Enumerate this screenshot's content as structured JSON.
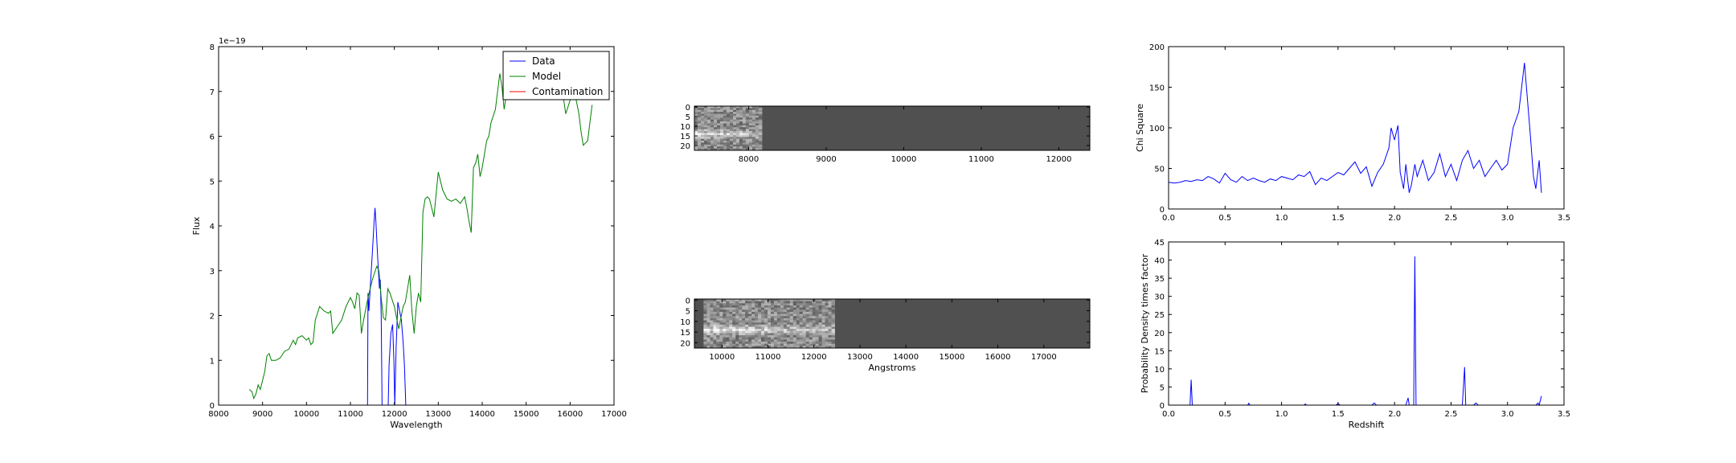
{
  "chart_data": [
    {
      "type": "line",
      "xlabel": "Wavelength",
      "ylabel": "Flux",
      "offset_label": "1e−19",
      "xlim": [
        8000,
        17000
      ],
      "ylim": [
        0,
        8
      ],
      "xticks": [
        8000,
        9000,
        10000,
        11000,
        12000,
        13000,
        14000,
        15000,
        16000,
        17000
      ],
      "yticks": [
        0,
        1,
        2,
        3,
        4,
        5,
        6,
        7,
        8
      ],
      "legend_position": "top-right",
      "series": [
        {
          "name": "Data",
          "color": "#0000ff",
          "points": [
            [
              11390,
              0
            ],
            [
              11400,
              2.5
            ],
            [
              11420,
              2.1
            ],
            [
              11450,
              2.6
            ],
            [
              11500,
              3.4
            ],
            [
              11540,
              4.1
            ],
            [
              11560,
              4.4
            ],
            [
              11580,
              4.1
            ],
            [
              11620,
              3.3
            ],
            [
              11660,
              2.6
            ],
            [
              11680,
              2.8
            ],
            [
              11700,
              2.0
            ],
            [
              11720,
              0
            ],
            [
              11760,
              0
            ],
            [
              11800,
              0
            ],
            [
              11860,
              0
            ],
            [
              11880,
              0.9
            ],
            [
              11920,
              1.6
            ],
            [
              11960,
              1.8
            ],
            [
              11990,
              1.0
            ],
            [
              12010,
              0
            ],
            [
              12040,
              1.3
            ],
            [
              12080,
              2.3
            ],
            [
              12120,
              2.1
            ],
            [
              12160,
              1.9
            ],
            [
              12200,
              1.4
            ],
            [
              12230,
              0.9
            ],
            [
              12260,
              0
            ]
          ]
        },
        {
          "name": "Model",
          "color": "#008000",
          "points": [
            [
              8700,
              0.35
            ],
            [
              8760,
              0.3
            ],
            [
              8800,
              0.15
            ],
            [
              8850,
              0.25
            ],
            [
              8900,
              0.45
            ],
            [
              8950,
              0.35
            ],
            [
              9000,
              0.55
            ],
            [
              9050,
              0.75
            ],
            [
              9100,
              1.1
            ],
            [
              9150,
              1.15
            ],
            [
              9200,
              1.0
            ],
            [
              9300,
              1.0
            ],
            [
              9400,
              1.05
            ],
            [
              9500,
              1.2
            ],
            [
              9600,
              1.25
            ],
            [
              9700,
              1.45
            ],
            [
              9750,
              1.35
            ],
            [
              9800,
              1.5
            ],
            [
              9900,
              1.55
            ],
            [
              10000,
              1.45
            ],
            [
              10050,
              1.5
            ],
            [
              10100,
              1.35
            ],
            [
              10150,
              1.4
            ],
            [
              10200,
              1.9
            ],
            [
              10300,
              2.2
            ],
            [
              10400,
              2.1
            ],
            [
              10500,
              2.05
            ],
            [
              10550,
              2.1
            ],
            [
              10600,
              1.6
            ],
            [
              10700,
              1.75
            ],
            [
              10800,
              1.9
            ],
            [
              10900,
              2.2
            ],
            [
              11000,
              2.4
            ],
            [
              11050,
              2.3
            ],
            [
              11100,
              2.15
            ],
            [
              11150,
              2.5
            ],
            [
              11200,
              2.45
            ],
            [
              11250,
              1.6
            ],
            [
              11300,
              1.9
            ],
            [
              11400,
              2.4
            ],
            [
              11500,
              2.8
            ],
            [
              11600,
              3.1
            ],
            [
              11650,
              3.0
            ],
            [
              11700,
              2.4
            ],
            [
              11750,
              1.95
            ],
            [
              11800,
              1.9
            ],
            [
              11850,
              2.6
            ],
            [
              11900,
              2.5
            ],
            [
              12000,
              2.2
            ],
            [
              12100,
              1.7
            ],
            [
              12200,
              2.2
            ],
            [
              12250,
              2.3
            ],
            [
              12300,
              2.6
            ],
            [
              12350,
              2.9
            ],
            [
              12400,
              2.1
            ],
            [
              12450,
              1.6
            ],
            [
              12500,
              2.2
            ],
            [
              12550,
              2.5
            ],
            [
              12600,
              2.3
            ],
            [
              12650,
              4.3
            ],
            [
              12700,
              4.6
            ],
            [
              12750,
              4.65
            ],
            [
              12800,
              4.6
            ],
            [
              12900,
              4.2
            ],
            [
              13000,
              5.2
            ],
            [
              13100,
              4.8
            ],
            [
              13200,
              4.6
            ],
            [
              13300,
              4.55
            ],
            [
              13400,
              4.6
            ],
            [
              13500,
              4.5
            ],
            [
              13600,
              4.65
            ],
            [
              13650,
              4.4
            ],
            [
              13700,
              4.1
            ],
            [
              13750,
              3.85
            ],
            [
              13800,
              5.3
            ],
            [
              13850,
              5.4
            ],
            [
              13900,
              5.6
            ],
            [
              13950,
              5.1
            ],
            [
              14000,
              5.3
            ],
            [
              14100,
              5.9
            ],
            [
              14150,
              6.0
            ],
            [
              14200,
              6.3
            ],
            [
              14300,
              6.6
            ],
            [
              14350,
              7.0
            ],
            [
              14400,
              7.4
            ],
            [
              14450,
              7.1
            ],
            [
              14500,
              6.6
            ],
            [
              14550,
              6.95
            ],
            [
              14600,
              7.2
            ],
            [
              15800,
              7.2
            ],
            [
              15900,
              6.5
            ],
            [
              16000,
              6.8
            ],
            [
              16100,
              7.0
            ],
            [
              16200,
              6.5
            ],
            [
              16250,
              6.1
            ],
            [
              16300,
              5.8
            ],
            [
              16400,
              5.9
            ],
            [
              16500,
              6.7
            ]
          ]
        },
        {
          "name": "Contamination",
          "color": "#ff0000",
          "points": [
            [
              8700,
              0
            ],
            [
              16500,
              0
            ]
          ]
        }
      ]
    },
    {
      "type": "heatmap",
      "name": "spectrum-2d-top",
      "xlim": [
        7300,
        12400
      ],
      "ylim": [
        22.5,
        -0.5
      ],
      "xticks": [
        8000,
        9000,
        10000,
        11000,
        12000
      ],
      "yticks": [
        0,
        5,
        10,
        15,
        20
      ],
      "data_extent": [
        7300,
        8170
      ],
      "background_color": "#505050"
    },
    {
      "type": "heatmap",
      "name": "spectrum-2d-bottom",
      "xlim": [
        9400,
        18000
      ],
      "ylim": [
        22.5,
        -0.5
      ],
      "xticks": [
        10000,
        11000,
        12000,
        13000,
        14000,
        15000,
        16000,
        17000
      ],
      "yticks": [
        0,
        5,
        10,
        15,
        20
      ],
      "xlabel": "Angstroms",
      "data_extent": [
        9600,
        12450
      ],
      "background_color": "#505050"
    },
    {
      "type": "line",
      "ylabel": "Chi Square",
      "xlim": [
        0,
        3.5
      ],
      "ylim": [
        0,
        200
      ],
      "xticks": [
        0.0,
        0.5,
        1.0,
        1.5,
        2.0,
        2.5,
        3.0,
        3.5
      ],
      "yticks": [
        0,
        50,
        100,
        150,
        200
      ],
      "series": [
        {
          "color": "#0000ff",
          "points": [
            [
              0,
              33
            ],
            [
              0.05,
              32
            ],
            [
              0.1,
              33
            ],
            [
              0.15,
              35
            ],
            [
              0.2,
              34
            ],
            [
              0.25,
              36
            ],
            [
              0.3,
              35
            ],
            [
              0.35,
              40
            ],
            [
              0.4,
              37
            ],
            [
              0.45,
              32
            ],
            [
              0.5,
              44
            ],
            [
              0.55,
              36
            ],
            [
              0.6,
              33
            ],
            [
              0.65,
              40
            ],
            [
              0.7,
              35
            ],
            [
              0.75,
              38
            ],
            [
              0.8,
              35
            ],
            [
              0.85,
              33
            ],
            [
              0.9,
              37
            ],
            [
              0.95,
              35
            ],
            [
              1.0,
              40
            ],
            [
              1.05,
              38
            ],
            [
              1.1,
              36
            ],
            [
              1.15,
              42
            ],
            [
              1.2,
              40
            ],
            [
              1.25,
              46
            ],
            [
              1.3,
              30
            ],
            [
              1.35,
              38
            ],
            [
              1.4,
              35
            ],
            [
              1.45,
              40
            ],
            [
              1.5,
              45
            ],
            [
              1.55,
              42
            ],
            [
              1.6,
              50
            ],
            [
              1.65,
              58
            ],
            [
              1.7,
              44
            ],
            [
              1.75,
              52
            ],
            [
              1.8,
              28
            ],
            [
              1.85,
              45
            ],
            [
              1.9,
              55
            ],
            [
              1.95,
              75
            ],
            [
              1.97,
              100
            ],
            [
              2.0,
              85
            ],
            [
              2.03,
              103
            ],
            [
              2.05,
              45
            ],
            [
              2.08,
              25
            ],
            [
              2.1,
              55
            ],
            [
              2.13,
              20
            ],
            [
              2.15,
              30
            ],
            [
              2.18,
              55
            ],
            [
              2.2,
              40
            ],
            [
              2.25,
              60
            ],
            [
              2.3,
              35
            ],
            [
              2.35,
              45
            ],
            [
              2.4,
              68
            ],
            [
              2.45,
              40
            ],
            [
              2.5,
              55
            ],
            [
              2.55,
              35
            ],
            [
              2.6,
              60
            ],
            [
              2.65,
              72
            ],
            [
              2.7,
              50
            ],
            [
              2.75,
              60
            ],
            [
              2.8,
              40
            ],
            [
              2.85,
              50
            ],
            [
              2.9,
              60
            ],
            [
              2.95,
              48
            ],
            [
              3.0,
              55
            ],
            [
              3.05,
              100
            ],
            [
              3.1,
              120
            ],
            [
              3.15,
              180
            ],
            [
              3.2,
              95
            ],
            [
              3.23,
              40
            ],
            [
              3.25,
              25
            ],
            [
              3.28,
              60
            ],
            [
              3.3,
              20
            ]
          ]
        }
      ]
    },
    {
      "type": "line",
      "xlabel": "Redshift",
      "ylabel": "Probability Density times factor",
      "xlim": [
        0,
        3.5
      ],
      "ylim": [
        0,
        45
      ],
      "xticks": [
        0.0,
        0.5,
        1.0,
        1.5,
        2.0,
        2.5,
        3.0,
        3.5
      ],
      "yticks": [
        0,
        5,
        10,
        15,
        20,
        25,
        30,
        35,
        40,
        45
      ],
      "series": [
        {
          "color": "#0000ff",
          "points": [
            [
              0,
              0
            ],
            [
              0.19,
              0
            ],
            [
              0.2,
              7
            ],
            [
              0.21,
              0
            ],
            [
              0.7,
              0
            ],
            [
              0.71,
              0.5
            ],
            [
              0.72,
              0
            ],
            [
              1.2,
              0
            ],
            [
              1.21,
              0.3
            ],
            [
              1.22,
              0
            ],
            [
              1.48,
              0
            ],
            [
              1.5,
              0.4
            ],
            [
              1.52,
              0
            ],
            [
              1.8,
              0
            ],
            [
              1.82,
              0.6
            ],
            [
              1.84,
              0
            ],
            [
              2.1,
              0
            ],
            [
              2.12,
              2
            ],
            [
              2.13,
              0
            ],
            [
              2.17,
              0
            ],
            [
              2.18,
              41
            ],
            [
              2.19,
              0
            ],
            [
              2.6,
              0
            ],
            [
              2.62,
              10.5
            ],
            [
              2.63,
              0
            ],
            [
              2.7,
              0
            ],
            [
              2.72,
              0.6
            ],
            [
              2.74,
              0
            ],
            [
              3.25,
              0
            ],
            [
              3.27,
              0.6
            ],
            [
              3.28,
              0
            ],
            [
              3.3,
              2.5
            ]
          ]
        }
      ]
    }
  ]
}
